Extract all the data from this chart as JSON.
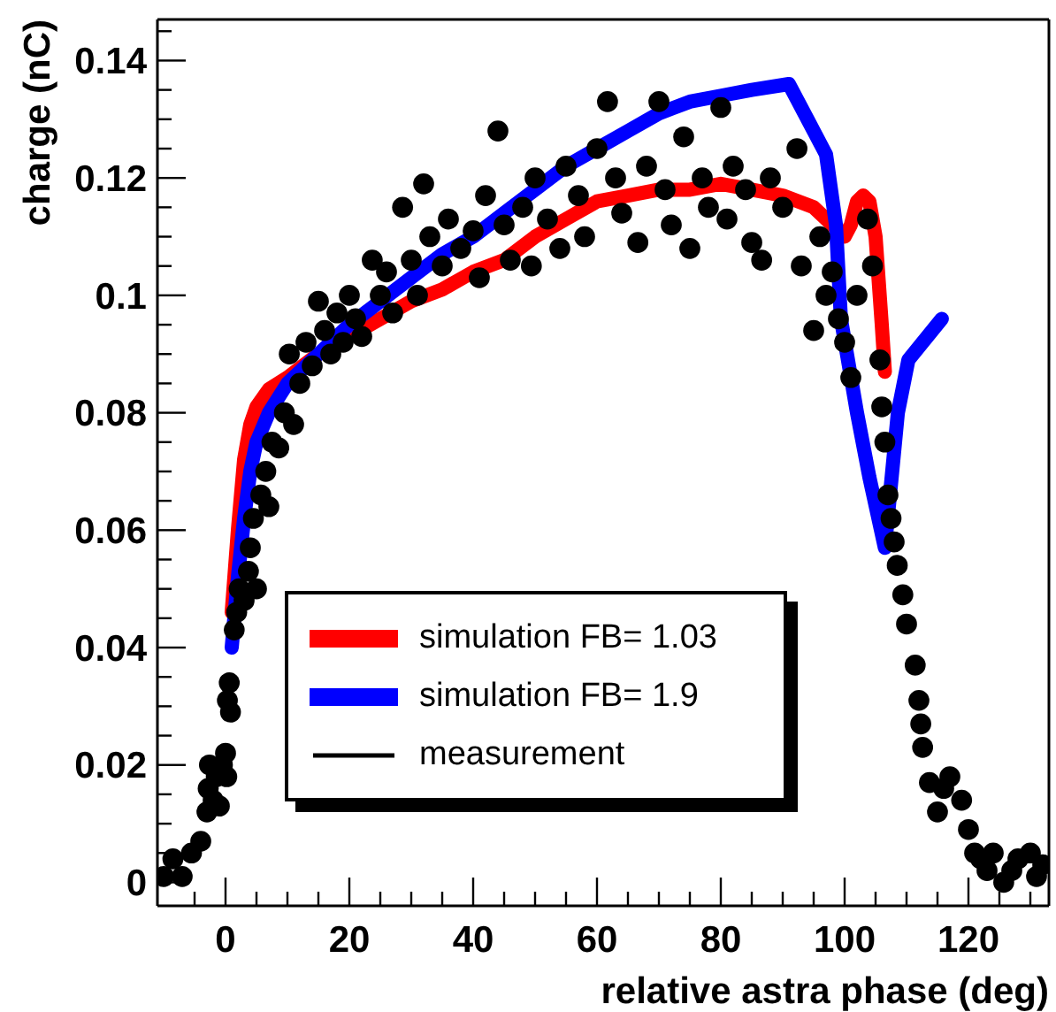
{
  "chart_data": {
    "type": "line",
    "xlabel": "relative astra phase (deg)",
    "ylabel": "charge (nC)",
    "xlim": [
      -11,
      133
    ],
    "ylim": [
      -0.004,
      0.147
    ],
    "xticks": [
      {
        "value": -5,
        "label": null
      },
      0,
      {
        "value": 5,
        "label": null
      },
      {
        "value": 10,
        "label": null
      },
      {
        "value": 15,
        "label": null
      },
      20,
      {
        "value": 25,
        "label": null
      },
      {
        "value": 30,
        "label": null
      },
      {
        "value": 35,
        "label": null
      },
      40,
      {
        "value": 45,
        "label": null
      },
      {
        "value": 50,
        "label": null
      },
      {
        "value": 55,
        "label": null
      },
      60,
      {
        "value": 65,
        "label": null
      },
      {
        "value": 70,
        "label": null
      },
      {
        "value": 75,
        "label": null
      },
      80,
      {
        "value": 85,
        "label": null
      },
      {
        "value": 90,
        "label": null
      },
      {
        "value": 95,
        "label": null
      },
      100,
      {
        "value": 105,
        "label": null
      },
      {
        "value": 110,
        "label": null
      },
      {
        "value": 115,
        "label": null
      },
      120,
      {
        "value": 125,
        "label": null
      },
      {
        "value": 130,
        "label": null
      }
    ],
    "yticks": [
      0,
      {
        "value": 0.005,
        "label": null
      },
      {
        "value": 0.01,
        "label": null
      },
      {
        "value": 0.015,
        "label": null
      },
      0.02,
      {
        "value": 0.025,
        "label": null
      },
      {
        "value": 0.03,
        "label": null
      },
      {
        "value": 0.035,
        "label": null
      },
      0.04,
      {
        "value": 0.045,
        "label": null
      },
      {
        "value": 0.05,
        "label": null
      },
      {
        "value": 0.055,
        "label": null
      },
      0.06,
      {
        "value": 0.065,
        "label": null
      },
      {
        "value": 0.07,
        "label": null
      },
      {
        "value": 0.075,
        "label": null
      },
      0.08,
      {
        "value": 0.085,
        "label": null
      },
      {
        "value": 0.09,
        "label": null
      },
      {
        "value": 0.095,
        "label": null
      },
      0.1,
      {
        "value": 0.105,
        "label": null
      },
      {
        "value": 0.11,
        "label": null
      },
      {
        "value": 0.115,
        "label": null
      },
      0.12,
      {
        "value": 0.125,
        "label": null
      },
      {
        "value": 0.13,
        "label": null
      },
      {
        "value": 0.135,
        "label": null
      },
      0.14,
      {
        "value": 0.145,
        "label": null
      }
    ],
    "grid": false,
    "legend": "bottom",
    "line_style": "solid",
    "series": [
      {
        "name": "simulation FB= 1.03",
        "color": "#ff0000",
        "x": [
          1,
          2,
          3,
          4,
          5,
          7,
          10,
          15,
          20,
          25,
          30,
          35,
          40,
          45,
          50,
          55,
          60,
          65,
          70,
          75,
          80,
          85,
          90,
          95,
          98,
          100,
          101,
          102,
          103,
          104,
          105,
          106,
          106.5
        ],
        "values": [
          0.046,
          0.06,
          0.072,
          0.078,
          0.081,
          0.084,
          0.086,
          0.09,
          0.093,
          0.096,
          0.099,
          0.101,
          0.104,
          0.106,
          0.11,
          0.113,
          0.116,
          0.117,
          0.118,
          0.118,
          0.119,
          0.118,
          0.117,
          0.115,
          0.112,
          0.11,
          0.112,
          0.116,
          0.117,
          0.116,
          0.11,
          0.095,
          0.087
        ]
      },
      {
        "name": "simulation FB= 1.9",
        "color": "#0000ff",
        "x": [
          1,
          2,
          3,
          4,
          5,
          7,
          10,
          15,
          20,
          25,
          30,
          35,
          40,
          45,
          50,
          55,
          60,
          65,
          70,
          75,
          80,
          85,
          91,
          94,
          97,
          98.6,
          99.4,
          102,
          104,
          106.5,
          108.6,
          110.3,
          115.7
        ],
        "values": [
          0.04,
          0.052,
          0.062,
          0.07,
          0.075,
          0.08,
          0.085,
          0.09,
          0.095,
          0.099,
          0.103,
          0.107,
          0.11,
          0.114,
          0.118,
          0.122,
          0.125,
          0.128,
          0.131,
          0.133,
          0.134,
          0.135,
          0.136,
          0.13,
          0.124,
          0.112,
          0.096,
          0.08,
          0.069,
          0.057,
          0.08,
          0.089,
          0.096
        ]
      },
      {
        "name": "measurement",
        "color": "#000000",
        "type": "scatter",
        "marker": "circle",
        "x": [
          -10,
          -8.5,
          -7,
          -5.5,
          -4,
          -3,
          -2.8,
          -2.6,
          -2,
          -1.5,
          -1,
          -0.5,
          0,
          0.2,
          0.3,
          0.6,
          0.8,
          1.4,
          1.8,
          2.2,
          3,
          3.7,
          4,
          4.5,
          5,
          5.7,
          6.5,
          7,
          7.5,
          8.6,
          9.5,
          10.3,
          11,
          12,
          13,
          14,
          15,
          16,
          17,
          18,
          19,
          20,
          21,
          22,
          23.7,
          25,
          26,
          27,
          28.6,
          30,
          31,
          32,
          33,
          35,
          36,
          38,
          40,
          41,
          42,
          44,
          45,
          46,
          48,
          49.4,
          50,
          52,
          54,
          55,
          57,
          58,
          60,
          61.7,
          63,
          64,
          66.6,
          68,
          70,
          71,
          72,
          74,
          75,
          77,
          78,
          80,
          81,
          82,
          84,
          85,
          86.6,
          88,
          90,
          92.3,
          93,
          95,
          96,
          97,
          98,
          99,
          100,
          101,
          102,
          103.7,
          104.5,
          105.7,
          106,
          106.5,
          107,
          107.5,
          108,
          108.5,
          109.4,
          110,
          111.4,
          112,
          112.3,
          112.6,
          113.7,
          115,
          116,
          117,
          118.9,
          120,
          121,
          122,
          123,
          124,
          125.7,
          127,
          128,
          130,
          131,
          132
        ],
        "values": [
          0.001,
          0.004,
          0.001,
          0.005,
          0.007,
          0.012,
          0.016,
          0.02,
          0.014,
          0.018,
          0.013,
          0.02,
          0.022,
          0.018,
          0.031,
          0.034,
          0.029,
          0.043,
          0.046,
          0.05,
          0.048,
          0.053,
          0.057,
          0.062,
          0.05,
          0.066,
          0.07,
          0.064,
          0.075,
          0.074,
          0.08,
          0.09,
          0.078,
          0.085,
          0.092,
          0.088,
          0.099,
          0.094,
          0.09,
          0.097,
          0.092,
          0.1,
          0.096,
          0.093,
          0.106,
          0.1,
          0.104,
          0.097,
          0.115,
          0.106,
          0.1,
          0.119,
          0.11,
          0.105,
          0.113,
          0.108,
          0.111,
          0.103,
          0.117,
          0.128,
          0.112,
          0.106,
          0.115,
          0.105,
          0.12,
          0.113,
          0.108,
          0.122,
          0.117,
          0.11,
          0.125,
          0.133,
          0.12,
          0.114,
          0.109,
          0.122,
          0.133,
          0.118,
          0.112,
          0.127,
          0.108,
          0.12,
          0.115,
          0.132,
          0.113,
          0.122,
          0.118,
          0.109,
          0.106,
          0.12,
          0.115,
          0.125,
          0.105,
          0.094,
          0.11,
          0.1,
          0.104,
          0.096,
          0.092,
          0.086,
          0.1,
          0.113,
          0.105,
          0.089,
          0.081,
          0.075,
          0.066,
          0.062,
          0.058,
          0.054,
          0.049,
          0.044,
          0.037,
          0.031,
          0.027,
          0.023,
          0.017,
          0.012,
          0.016,
          0.018,
          0.014,
          0.009,
          0.005,
          0.004,
          0.002,
          0.005,
          0,
          0.002,
          0.004,
          0.005,
          0.001,
          0.003
        ]
      }
    ]
  }
}
